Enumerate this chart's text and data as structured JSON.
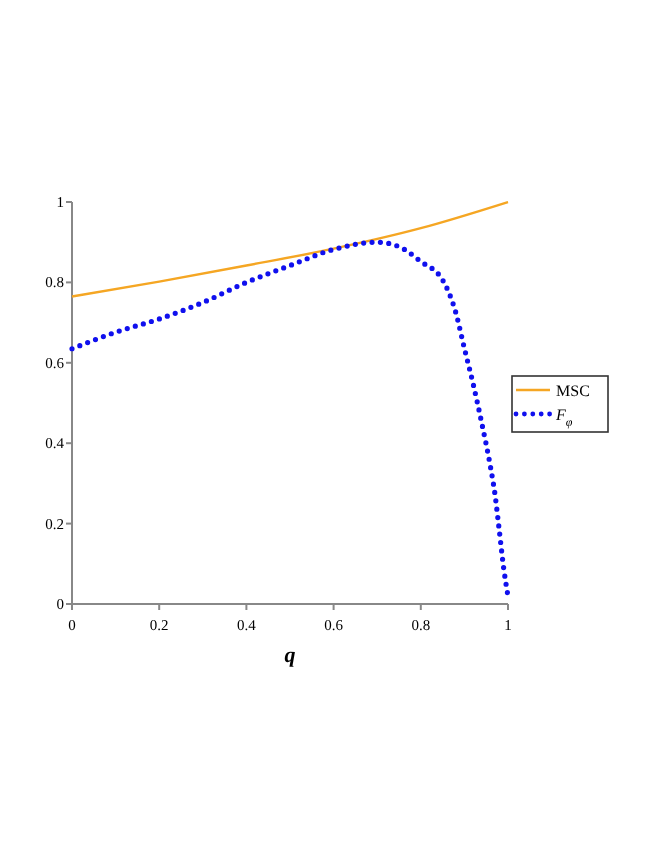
{
  "chart_data": {
    "type": "line",
    "xlabel": "q",
    "xlim": [
      0,
      1
    ],
    "ylim": [
      0,
      1
    ],
    "xticks": [
      0,
      0.2,
      0.4,
      0.6,
      0.8,
      1
    ],
    "yticks": [
      0,
      0.2,
      0.4,
      0.6,
      0.8,
      1
    ],
    "grid": false,
    "legend": "right",
    "series": [
      {
        "name": "MSC",
        "color": "#f5a623",
        "line_style": "solid",
        "x": [
          0,
          0.2,
          0.4,
          0.6,
          0.8,
          1
        ],
        "values": [
          0.765,
          0.802,
          0.842,
          0.884,
          0.935,
          1
        ]
      },
      {
        "name": "F$_{φ}$",
        "color": "#1010ee",
        "line_style": "dotted",
        "x": [
          0,
          0.1,
          0.2,
          0.3,
          0.4,
          0.5,
          0.6,
          0.7,
          0.75,
          0.8,
          0.85,
          0.88,
          0.9,
          0.92,
          0.94,
          0.96,
          0.97,
          0.98,
          0.99,
          1
        ],
        "values": [
          0.635,
          0.676,
          0.709,
          0.75,
          0.8,
          0.842,
          0.882,
          0.9,
          0.889,
          0.852,
          0.806,
          0.726,
          0.636,
          0.548,
          0.449,
          0.34,
          0.274,
          0.183,
          0.09,
          0.02
        ]
      }
    ]
  }
}
